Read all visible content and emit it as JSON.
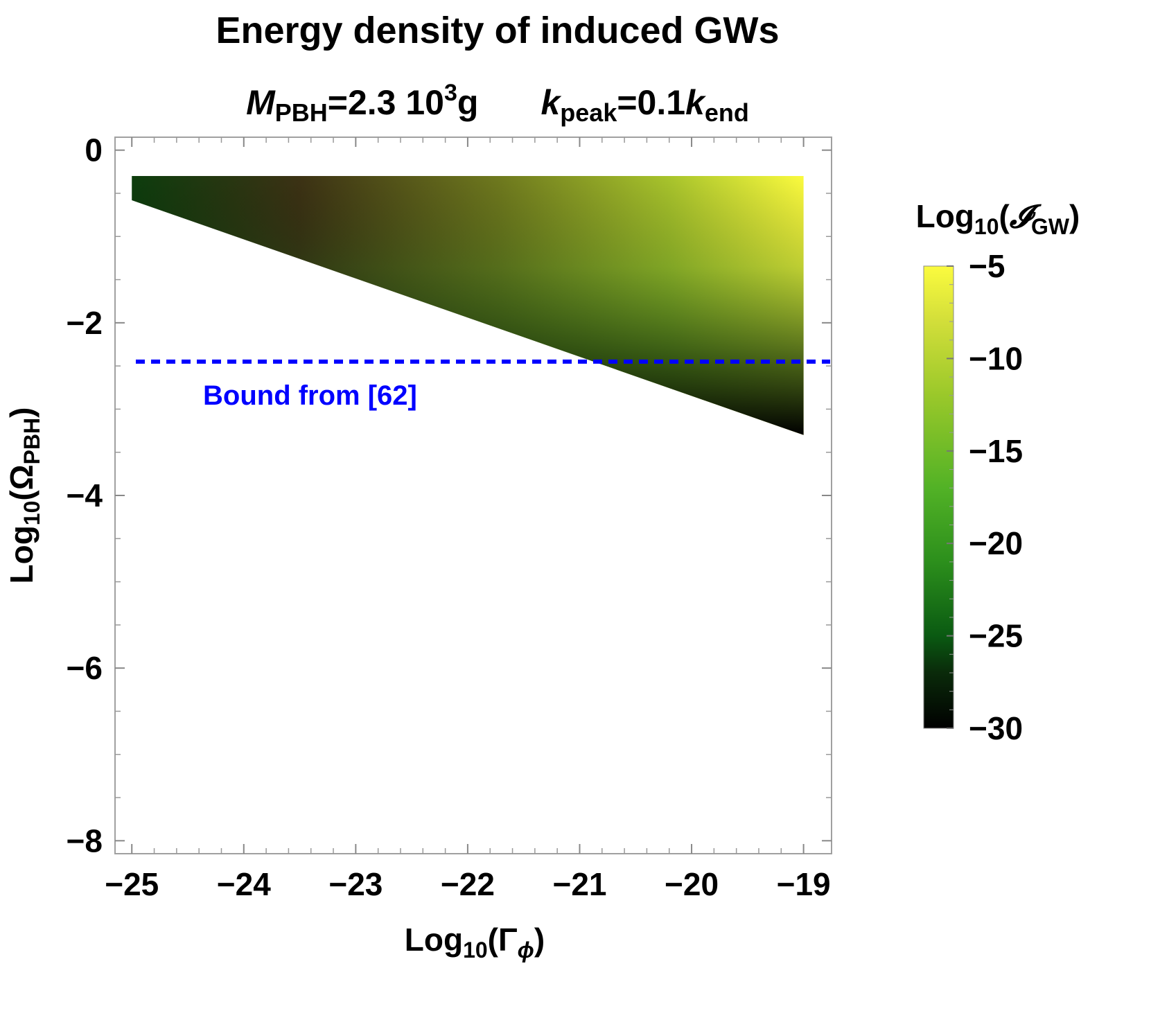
{
  "chart_data": {
    "type": "heatmap",
    "title": "Energy density of induced GWs",
    "subtitle": {
      "mass_symbol": "M",
      "mass_sub": "PBH",
      "mass_value": "=2.3 10",
      "mass_exp": "3",
      "mass_unit": "g",
      "k_symbol": "k",
      "k_sub": "peak",
      "k_value": "=0.1",
      "k_end_symbol": "k",
      "k_end_sub": "end"
    },
    "xlabel": {
      "prefix": "Log",
      "sub": "10",
      "open": "(",
      "symbol": "Γ",
      "symbol_sub": "ϕ",
      "close": ")"
    },
    "ylabel": {
      "prefix": "Log",
      "sub": "10",
      "open": "(",
      "symbol": "Ω",
      "symbol_sub": "PBH",
      "close": ")"
    },
    "xlim": [
      -25.15,
      -18.75
    ],
    "ylim": [
      -8.15,
      0.15
    ],
    "x_ticks": [
      -25,
      -24,
      -23,
      -22,
      -21,
      -20,
      -19
    ],
    "x_tick_labels": [
      "−25",
      "−24",
      "−23",
      "−22",
      "−21",
      "−20",
      "−19"
    ],
    "y_ticks": [
      0,
      -2,
      -4,
      -6,
      -8
    ],
    "y_tick_labels": [
      "0",
      "−2",
      "−4",
      "−6",
      "−8"
    ],
    "region": {
      "x_range": [
        -25,
        -19
      ],
      "top_y": -0.3,
      "lower_boundary": [
        [
          -25,
          -0.58
        ],
        [
          -19,
          -3.3
        ]
      ]
    },
    "colormap": {
      "stops": [
        {
          "value": -30,
          "color": "#000000"
        },
        {
          "value": -27,
          "color": "#0a2a0a"
        },
        {
          "value": -25,
          "color": "#0a5a12"
        },
        {
          "value": -21,
          "color": "#2c8f1c"
        },
        {
          "value": -17,
          "color": "#52b226"
        },
        {
          "value": -12,
          "color": "#9ac82a"
        },
        {
          "value": -8,
          "color": "#d2de3a"
        },
        {
          "value": -5,
          "color": "#fbfb3e"
        }
      ]
    },
    "colorbar": {
      "title_prefix": "Log",
      "title_sub": "10",
      "title_open": "(",
      "title_symbol": "𝓘",
      "title_symbol_sub": "GW",
      "title_close": ")",
      "range": [
        -30,
        -5
      ],
      "ticks": [
        -5,
        -10,
        -15,
        -20,
        -25,
        -30
      ],
      "tick_labels": [
        "−5",
        "−10",
        "−15",
        "−20",
        "−25",
        "−30"
      ]
    },
    "bound_line": {
      "y": -2.45,
      "color": "#0000ff",
      "style": "dashed",
      "label": "Bound from [62]"
    }
  }
}
